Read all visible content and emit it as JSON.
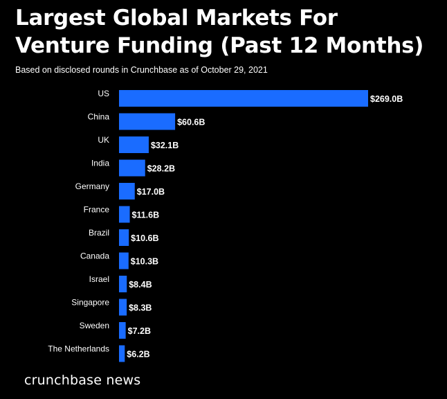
{
  "chart_data": {
    "type": "bar",
    "orientation": "horizontal",
    "title": "Largest Global Markets For Venture Funding (Past 12 Months)",
    "subtitle": "Based on disclosed rounds in Crunchbase as of October 29, 2021",
    "categories": [
      "US",
      "China",
      "UK",
      "India",
      "Germany",
      "France",
      "Brazil",
      "Canada",
      "Israel",
      "Singapore",
      "Sweden",
      "The Netherlands"
    ],
    "values": [
      269.0,
      60.6,
      32.1,
      28.2,
      17.0,
      11.6,
      10.6,
      10.3,
      8.4,
      8.3,
      7.2,
      6.2
    ],
    "value_labels": [
      "$269.0B",
      "$60.6B",
      "$32.1B",
      "$28.2B",
      "$17.0B",
      "$11.6B",
      "$10.6B",
      "$10.3B",
      "$8.4B",
      "$8.3B",
      "$7.2B",
      "$6.2B"
    ],
    "bar_color": "#1a6cff",
    "background_color": "#000000",
    "text_color": "#ffffff",
    "grid": false,
    "legend": "none"
  },
  "footer": {
    "brand": "crunchbase news"
  }
}
